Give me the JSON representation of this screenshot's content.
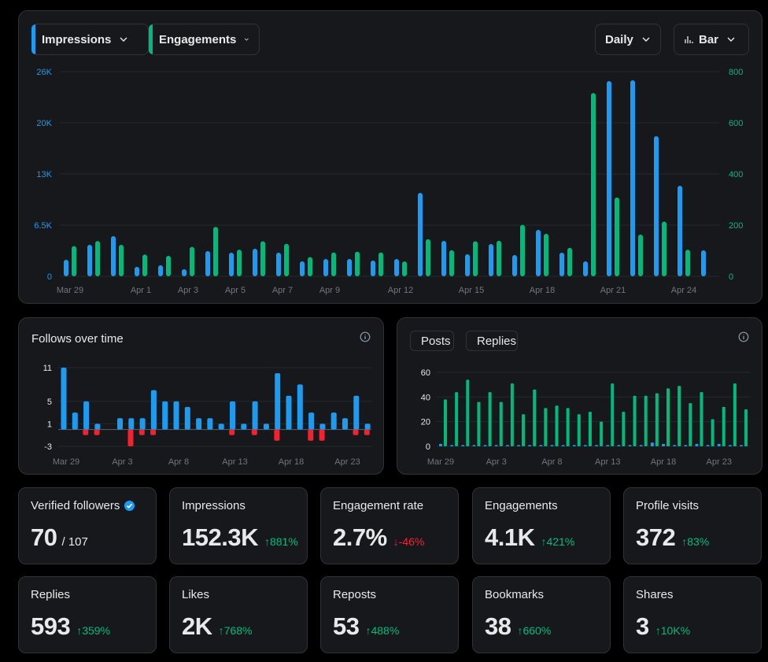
{
  "colors": {
    "blue": "#1d9bf0",
    "green": "#00ba7c",
    "red": "#f4212e",
    "grid": "#2f3336",
    "muted": "#71767b"
  },
  "main": {
    "dropdowns": {
      "impressions": "Impressions",
      "engagements": "Engagements",
      "period": "Daily",
      "type": "Bar"
    }
  },
  "follows": {
    "title": "Follows over time"
  },
  "posts": {
    "legend_posts": "Posts",
    "legend_replies": "Replies"
  },
  "chart_data": [
    {
      "type": "bar",
      "x_labels": [
        "Mar 29",
        "Apr 1",
        "Apr 3",
        "Apr 5",
        "Apr 7",
        "Apr 9",
        "Apr 12",
        "Apr 15",
        "Apr 18",
        "Apr 21",
        "Apr 24"
      ],
      "x_label_index": [
        0,
        3,
        5,
        7,
        9,
        11,
        14,
        17,
        20,
        23,
        26
      ],
      "left_axis": {
        "ticks": [
          "0",
          "6.5K",
          "13K",
          "20K",
          "26K"
        ],
        "values": [
          0,
          6500,
          13000,
          19500,
          26000
        ]
      },
      "right_axis": {
        "ticks": [
          "0",
          "200",
          "400",
          "600",
          "800"
        ],
        "values": [
          0,
          200,
          400,
          600,
          800
        ]
      },
      "series": [
        {
          "name": "Impressions",
          "axis": "left",
          "values": [
            2100,
            4000,
            5100,
            1200,
            1400,
            900,
            3200,
            3000,
            3500,
            3000,
            1900,
            2200,
            2200,
            2000,
            2200,
            10600,
            4500,
            2800,
            4100,
            2700,
            5900,
            3000,
            1900,
            24800,
            24900,
            17800,
            11500,
            3300
          ]
        },
        {
          "name": "Engagements",
          "axis": "right",
          "values": [
            118,
            138,
            123,
            85,
            80,
            115,
            193,
            104,
            137,
            127,
            75,
            93,
            96,
            93,
            58,
            145,
            102,
            137,
            139,
            201,
            166,
            111,
            716,
            308,
            163,
            214,
            104,
            0
          ]
        }
      ]
    },
    {
      "type": "bar",
      "x_labels": [
        "Mar 29",
        "Apr 3",
        "Apr 8",
        "Apr 13",
        "Apr 18",
        "Apr 23"
      ],
      "x_label_index": [
        0,
        5,
        10,
        15,
        20,
        25
      ],
      "y_ticks": [
        -3,
        1,
        5,
        11
      ],
      "ylim": [
        -3,
        11
      ],
      "series": [
        {
          "name": "Follows",
          "values": [
            11,
            3,
            5,
            1,
            0,
            2,
            2,
            2,
            7,
            5,
            5,
            4,
            2,
            2,
            1,
            5,
            1,
            5,
            1,
            10,
            6,
            8,
            3,
            1,
            3,
            2,
            6,
            1
          ]
        },
        {
          "name": "Unfollows",
          "values": [
            0,
            -1,
            -1,
            0,
            0,
            -3,
            -1,
            -1,
            0,
            0,
            0,
            0,
            0,
            0,
            -1,
            0,
            -1,
            0,
            -2,
            0,
            0,
            -2,
            -2,
            0,
            0,
            -1,
            -1,
            0
          ]
        }
      ]
    },
    {
      "type": "bar",
      "x_labels": [
        "Mar 29",
        "Apr 3",
        "Apr 8",
        "Apr 13",
        "Apr 18",
        "Apr 23"
      ],
      "x_label_index": [
        0,
        5,
        10,
        15,
        20,
        25
      ],
      "y_ticks": [
        0,
        20,
        40,
        60
      ],
      "ylim": [
        0,
        60
      ],
      "series": [
        {
          "name": "Posts",
          "values": [
            2,
            1,
            1,
            1,
            1,
            1,
            1,
            1,
            1,
            1,
            1,
            1,
            1,
            1,
            1,
            1,
            1,
            1,
            1,
            3,
            2,
            1,
            1,
            2,
            1,
            2,
            1,
            1
          ]
        },
        {
          "name": "Replies",
          "values": [
            38,
            44,
            54,
            36,
            44,
            36,
            51,
            26,
            46,
            31,
            33,
            31,
            26,
            28,
            20,
            51,
            28,
            41,
            41,
            43,
            47,
            49,
            35,
            44,
            22,
            32,
            51,
            30
          ]
        }
      ]
    }
  ],
  "stats": [
    {
      "label": "Verified followers",
      "value": "70",
      "sub": "/ 107",
      "change": "",
      "dir": "",
      "badge": true
    },
    {
      "label": "Impressions",
      "value": "152.3K",
      "change": "881%",
      "dir": "up"
    },
    {
      "label": "Engagement rate",
      "value": "2.7%",
      "change": "-46%",
      "dir": "down"
    },
    {
      "label": "Engagements",
      "value": "4.1K",
      "change": "421%",
      "dir": "up"
    },
    {
      "label": "Profile visits",
      "value": "372",
      "change": "83%",
      "dir": "up"
    },
    {
      "label": "Replies",
      "value": "593",
      "change": "359%",
      "dir": "up"
    },
    {
      "label": "Likes",
      "value": "2K",
      "change": "768%",
      "dir": "up"
    },
    {
      "label": "Reposts",
      "value": "53",
      "change": "488%",
      "dir": "up"
    },
    {
      "label": "Bookmarks",
      "value": "38",
      "change": "660%",
      "dir": "up"
    },
    {
      "label": "Shares",
      "value": "3",
      "change": "10K%",
      "dir": "up"
    }
  ]
}
